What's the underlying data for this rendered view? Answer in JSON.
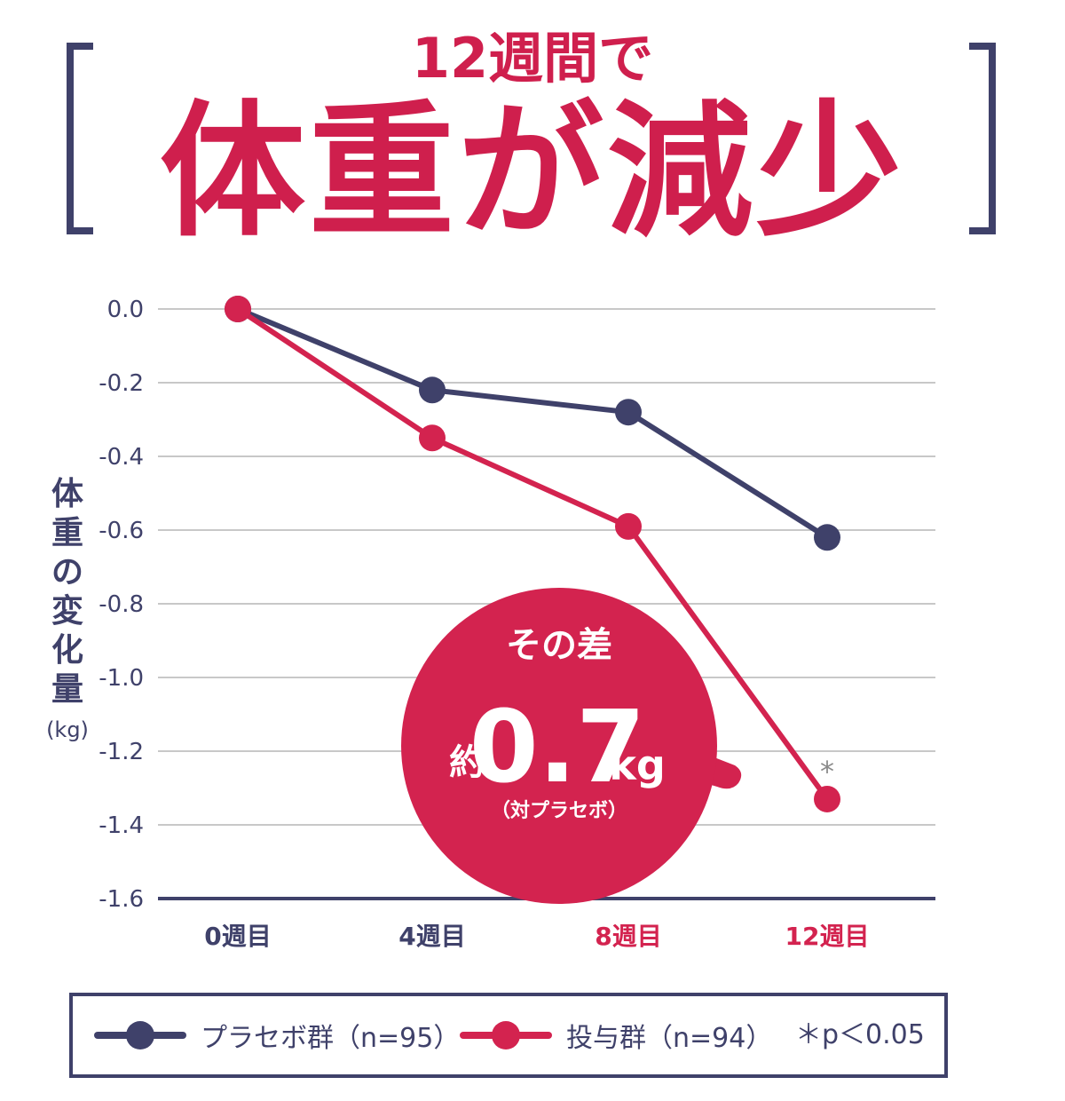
{
  "header": {
    "subtitle": "12週間で",
    "title": "体重が減少"
  },
  "yaxis_label": "体重の変化量",
  "yaxis_unit": "(kg)",
  "callout": {
    "line1": "その差",
    "prefix": "約",
    "value": "0.7",
    "unit": "kg",
    "note": "（対プラセボ）"
  },
  "significance_marker": "*",
  "legend": {
    "placebo": "プラセボ群（n=95）",
    "treatment": "投与群（n=94）",
    "note": "＊p＜0.05"
  },
  "colors": {
    "placebo": "#3f416a",
    "treatment": "#d3234f",
    "axis_text": "#3f416a",
    "highlight_tick": "#d3234f",
    "grid": "#c8c8c8"
  },
  "chart_data": {
    "type": "line",
    "categories": [
      "0週目",
      "4週目",
      "8週目",
      "12週目"
    ],
    "highlighted_categories": [
      "8週目",
      "12週目"
    ],
    "series": [
      {
        "name": "プラセボ群（n=95）",
        "values": [
          0.0,
          -0.22,
          -0.28,
          -0.62
        ]
      },
      {
        "name": "投与群（n=94）",
        "values": [
          0.0,
          -0.35,
          -0.59,
          -1.33
        ]
      }
    ],
    "yticks": [
      "0.0",
      "-0.2",
      "-0.4",
      "-0.6",
      "-0.8",
      "-1.0",
      "-1.2",
      "-1.4",
      "-1.6"
    ],
    "ylim": [
      -1.6,
      0.0
    ],
    "grid": true,
    "legend_position": "bottom"
  }
}
